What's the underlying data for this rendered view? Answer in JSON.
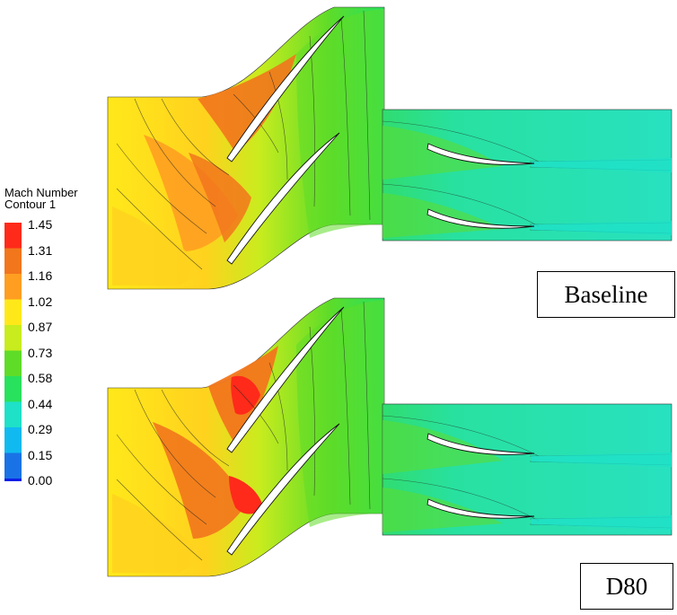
{
  "legend": {
    "title_line1": "Mach Number",
    "title_line2": "Contour 1",
    "levels": [
      "1.45",
      "1.31",
      "1.16",
      "1.02",
      "0.87",
      "0.73",
      "0.58",
      "0.44",
      "0.29",
      "0.15",
      "0.00"
    ],
    "colors": [
      "#ff2a1a",
      "#f2761c",
      "#ff9e21",
      "#ffe81a",
      "#c8ec1e",
      "#5edc28",
      "#28e15d",
      "#1ee1c8",
      "#10baf0",
      "#1a73e6",
      "#0a1ee6"
    ]
  },
  "cases": [
    {
      "label": "Baseline"
    },
    {
      "label": "D80"
    }
  ],
  "colors": {
    "stator_high": "#f2761c",
    "stator_mid": "#ffd21e",
    "stator_inlet": "#ffe81a",
    "stator_exit": "#5edc28",
    "rotor_field": "#28e1a0",
    "blade_wake": "#1ee1c8"
  }
}
